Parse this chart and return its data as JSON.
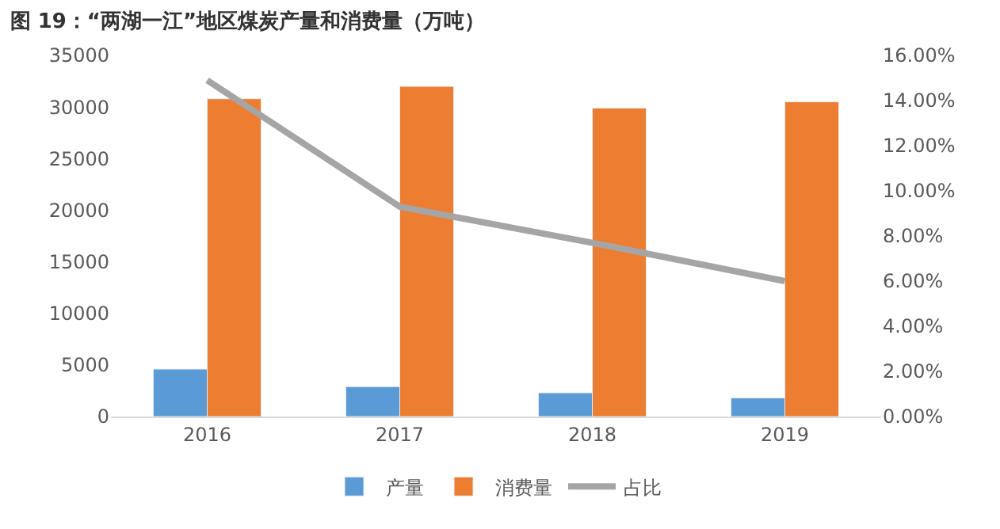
{
  "chart_data": {
    "type": "bar",
    "title": "图 19：“两湖一江”地区煤炭产量和消费量（万吨）",
    "categories": [
      "2016",
      "2017",
      "2018",
      "2019"
    ],
    "series": [
      {
        "name": "产量",
        "color": "#5b9bd5",
        "values": [
          4600,
          2900,
          2300,
          1800
        ]
      },
      {
        "name": "消费量",
        "color": "#ed7d31",
        "values": [
          30800,
          32000,
          29900,
          30500
        ]
      },
      {
        "name": "占比",
        "type": "line",
        "axis": "y2",
        "color": "#a5a5a5",
        "values": [
          14.9,
          9.3,
          7.7,
          6.0
        ],
        "marker": "none"
      }
    ],
    "ylim": [
      0,
      35000
    ],
    "yticks": [
      0,
      5000,
      10000,
      15000,
      20000,
      25000,
      30000,
      35000
    ],
    "y2lim": [
      0,
      16
    ],
    "y2ticks": [
      {
        "value": 0,
        "label": "0.00%"
      },
      {
        "value": 2,
        "label": "2.00%"
      },
      {
        "value": 4,
        "label": "4.00%"
      },
      {
        "value": 6,
        "label": "6.00%"
      },
      {
        "value": 8,
        "label": "8.00%"
      },
      {
        "value": 10,
        "label": "10.00%"
      },
      {
        "value": 12,
        "label": "12.00%"
      },
      {
        "value": 14,
        "label": "14.00%"
      },
      {
        "value": 16,
        "label": "16.00%"
      }
    ],
    "legend": "bottom"
  }
}
